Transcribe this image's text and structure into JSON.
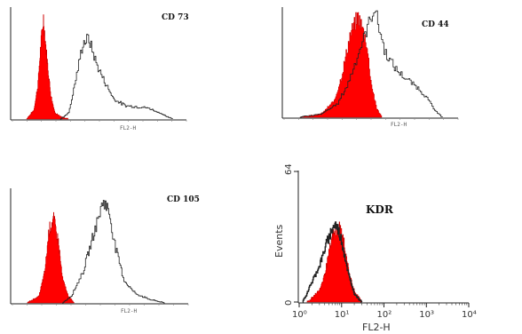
{
  "colors": {
    "isotype_fill": "#ff0000",
    "isotype_stroke": "#cc0000",
    "marker_line": "#222222",
    "axis": "#222222"
  },
  "chart_data": [
    {
      "type": "area",
      "title": "CD 73",
      "xlabel": "FL2-H",
      "ylabel": "",
      "series": [
        {
          "name": "",
          "x": [
            0.25,
            0.38,
            0.45,
            0.5,
            0.55,
            0.6,
            0.68,
            0.75,
            0.85,
            1.0
          ],
          "y": [
            0,
            8,
            30,
            65,
            90,
            60,
            22,
            6,
            2,
            0
          ]
        },
        {
          "name": "",
          "x": [
            0.85,
            1.0,
            1.1,
            1.25,
            1.35,
            1.5,
            1.65,
            1.8,
            2.0,
            2.2,
            2.4,
            2.6,
            2.75,
            2.85
          ],
          "y": [
            0,
            6,
            30,
            68,
            72,
            48,
            32,
            18,
            12,
            11,
            10,
            6,
            2,
            0
          ]
        }
      ]
    },
    {
      "type": "area",
      "title": "CD 44",
      "xlabel": "FL2-H",
      "ylabel": "",
      "series": [
        {
          "name": "",
          "x": [
            0.3,
            0.7,
            0.95,
            1.1,
            1.25,
            1.4,
            1.55,
            1.65,
            1.75,
            1.85
          ],
          "y": [
            0,
            3,
            15,
            40,
            75,
            92,
            70,
            30,
            8,
            0
          ]
        },
        {
          "name": "",
          "x": [
            0.3,
            0.7,
            1.0,
            1.2,
            1.4,
            1.55,
            1.7,
            1.9,
            2.1,
            2.3,
            2.5,
            2.7,
            2.85,
            3.0
          ],
          "y": [
            0,
            3,
            12,
            30,
            58,
            78,
            100,
            60,
            44,
            35,
            28,
            18,
            6,
            0
          ]
        }
      ]
    },
    {
      "type": "area",
      "title": "CD 105",
      "xlabel": "FL2-H",
      "ylabel": "",
      "series": [
        {
          "name": "",
          "x": [
            0.25,
            0.45,
            0.55,
            0.62,
            0.7,
            0.78,
            0.85,
            0.95,
            1.05
          ],
          "y": [
            0,
            6,
            28,
            65,
            75,
            55,
            22,
            6,
            0
          ]
        },
        {
          "name": "",
          "x": [
            0.85,
            1.0,
            1.2,
            1.4,
            1.55,
            1.65,
            1.75,
            1.9,
            2.1,
            2.35,
            2.6
          ],
          "y": [
            0,
            6,
            28,
            65,
            92,
            80,
            50,
            20,
            8,
            3,
            0
          ]
        }
      ]
    },
    {
      "type": "area",
      "title": "KDR",
      "xlabel": "FL2-H",
      "ylabel": "Events",
      "x_scale": "log",
      "xticks": [
        "10⁰",
        "10¹",
        "10²",
        "10³",
        "10⁴"
      ],
      "yticks": [
        "0",
        "64"
      ],
      "ylim": [
        0,
        64
      ],
      "series": [
        {
          "name": "",
          "x": [
            1.5,
            2,
            3,
            4,
            5,
            6,
            7,
            8,
            9,
            10,
            12,
            15,
            20,
            30
          ],
          "y": [
            0,
            2,
            6,
            14,
            24,
            32,
            34,
            36,
            37,
            34,
            26,
            14,
            5,
            0
          ]
        },
        {
          "name": "",
          "x": [
            1.2,
            1.5,
            2,
            3,
            4,
            5,
            6,
            7,
            8,
            10,
            12,
            15,
            20,
            30
          ],
          "y": [
            0,
            4,
            10,
            18,
            26,
            32,
            36,
            38,
            36,
            30,
            22,
            12,
            4,
            0
          ]
        }
      ]
    }
  ]
}
